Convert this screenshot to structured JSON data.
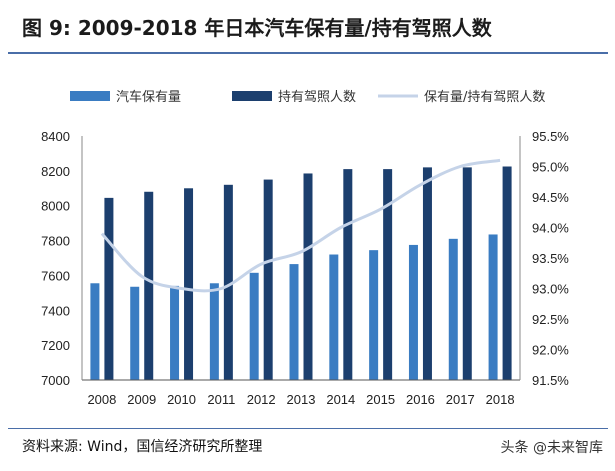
{
  "title": "图 9:  2009-2018 年日本汽车保有量/持有驾照人数",
  "source": "资料来源: Wind，国信经济研究所整理",
  "watermark": "头条 @未来智库",
  "colors": {
    "bar_vehicles": "#3a7cc2",
    "bar_license": "#1c3f6e",
    "line_ratio": "#c5d3e8",
    "accent": "#4a6ea8"
  },
  "chart_data": {
    "type": "bar",
    "categories": [
      "2008",
      "2009",
      "2010",
      "2011",
      "2012",
      "2013",
      "2014",
      "2015",
      "2016",
      "2017",
      "2018"
    ],
    "series": [
      {
        "name": "汽车保有量",
        "type": "bar",
        "axis": "left",
        "values": [
          7555,
          7535,
          7540,
          7555,
          7615,
          7665,
          7720,
          7745,
          7775,
          7810,
          7835
        ]
      },
      {
        "name": "持有驾照人数",
        "type": "bar",
        "axis": "left",
        "values": [
          8045,
          8080,
          8100,
          8120,
          8150,
          8185,
          8210,
          8210,
          8220,
          8220,
          8225
        ]
      },
      {
        "name": "保有量/持有驾照人数",
        "type": "line",
        "axis": "right",
        "values": [
          93.9,
          93.2,
          93.0,
          93.0,
          93.4,
          93.6,
          94.0,
          94.3,
          94.7,
          95.0,
          95.1
        ]
      }
    ],
    "y_left": {
      "min": 7000,
      "max": 8400,
      "ticks": [
        "7000",
        "7200",
        "7400",
        "7600",
        "7800",
        "8000",
        "8200",
        "8400"
      ]
    },
    "y_right": {
      "min": 91.5,
      "max": 95.5,
      "ticks": [
        "91.5%",
        "92.0%",
        "92.5%",
        "93.0%",
        "93.5%",
        "94.0%",
        "94.5%",
        "95.0%",
        "95.5%"
      ]
    },
    "grid": false,
    "legend_position": "top"
  }
}
